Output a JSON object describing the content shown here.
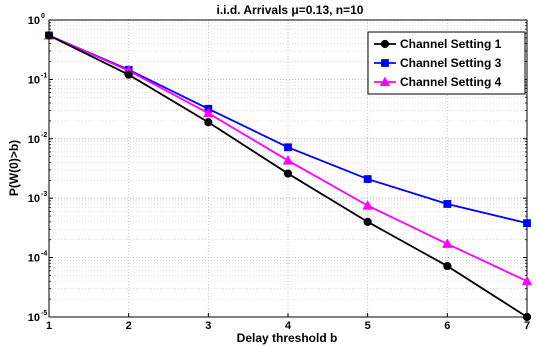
{
  "chart_data": {
    "type": "line",
    "title": "i.i.d. Arrivals μ=0.13, n=10",
    "xlabel": "Delay threshold b",
    "ylabel": "P(W(0)>b)",
    "x": [
      1,
      2,
      3,
      4,
      5,
      6,
      7
    ],
    "xlim": [
      1,
      7
    ],
    "ylim": [
      1e-05,
      1
    ],
    "yscale": "log",
    "grid": true,
    "legend_position": "top-right",
    "x_ticks": [
      "1",
      "2",
      "3",
      "4",
      "5",
      "6",
      "7"
    ],
    "y_ticks": [
      {
        "base": "10",
        "exp": "0"
      },
      {
        "base": "10",
        "exp": "-1"
      },
      {
        "base": "10",
        "exp": "-2"
      },
      {
        "base": "10",
        "exp": "-3"
      },
      {
        "base": "10",
        "exp": "-4"
      },
      {
        "base": "10",
        "exp": "-5"
      }
    ],
    "series": [
      {
        "name": "Channel Setting 1",
        "color": "#000000",
        "marker": "circle",
        "values": [
          0.55,
          0.12,
          0.019,
          0.0026,
          0.0004,
          7.2e-05,
          1e-05
        ]
      },
      {
        "name": "Channel Setting 3",
        "color": "#0000ff",
        "marker": "square",
        "values": [
          0.55,
          0.145,
          0.032,
          0.0072,
          0.0021,
          0.0008,
          0.00038
        ]
      },
      {
        "name": "Channel Setting 4",
        "color": "#ff00ff",
        "marker": "triangle",
        "values": [
          0.55,
          0.14,
          0.027,
          0.0043,
          0.00075,
          0.00017,
          4e-05
        ]
      }
    ]
  }
}
